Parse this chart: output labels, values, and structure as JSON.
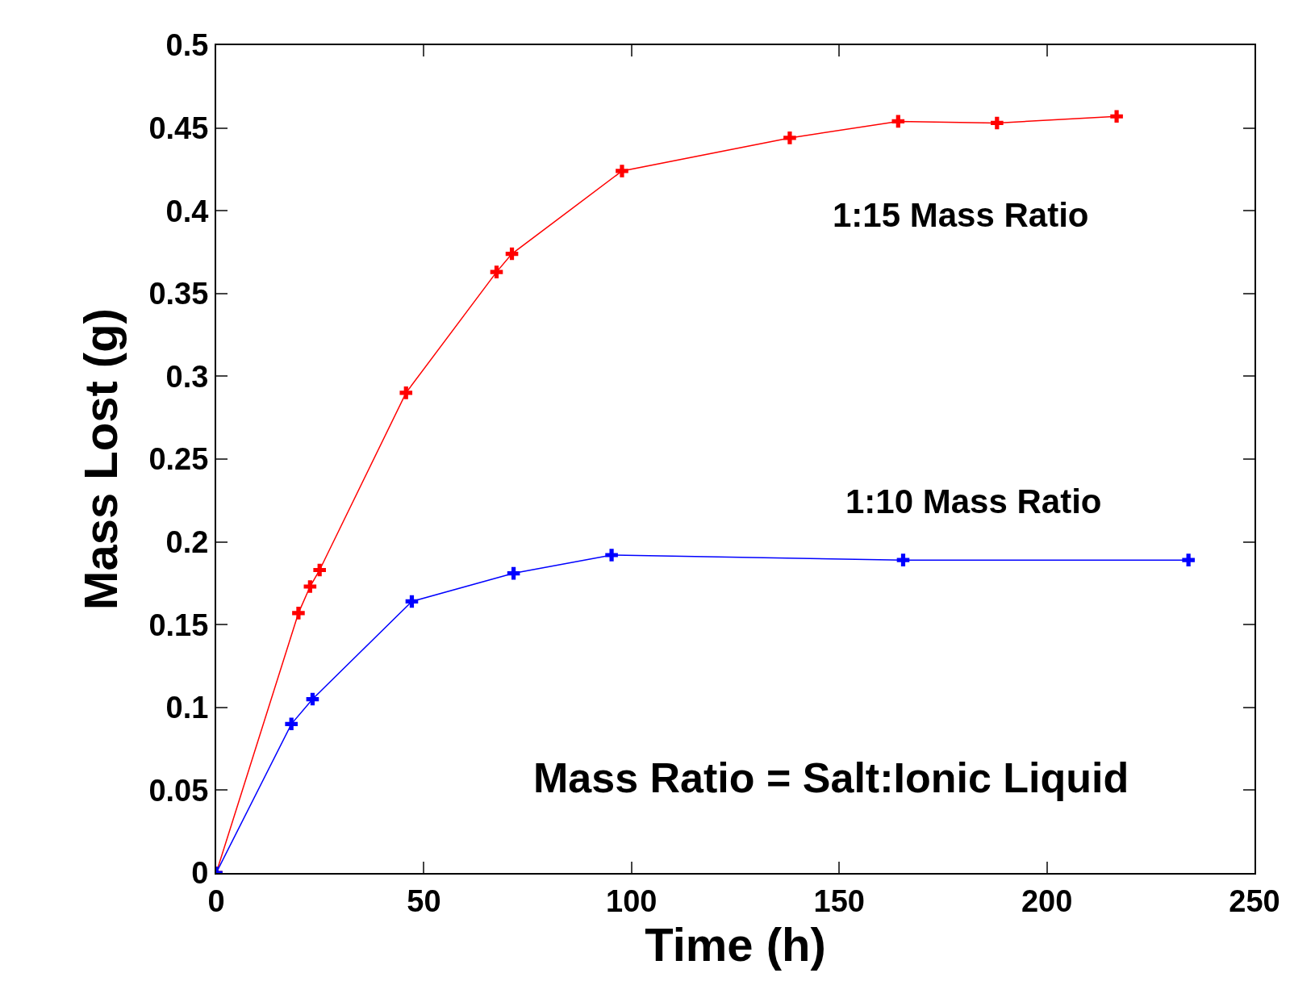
{
  "chart_data": {
    "type": "line",
    "xlabel": "Time (h)",
    "ylabel": "Mass Lost (g)",
    "xlim": [
      0,
      250
    ],
    "xticks": [
      0,
      50,
      100,
      150,
      200,
      250
    ],
    "ylim": [
      0,
      0.5
    ],
    "yticks": [
      0,
      0.05,
      0.1,
      0.15,
      0.2,
      0.25,
      0.3,
      0.35,
      0.4,
      0.45,
      0.5
    ],
    "series": [
      {
        "name": "1:15 Mass Ratio",
        "color": "#ff0000",
        "x": [
          0,
          19.8,
          22.6,
          24.9,
          45.7,
          67.5,
          71.2,
          97.7,
          138.1,
          164.2,
          188,
          216.8
        ],
        "values": [
          0,
          0.157,
          0.173,
          0.183,
          0.29,
          0.363,
          0.374,
          0.424,
          0.444,
          0.454,
          0.453,
          0.457
        ]
      },
      {
        "name": "1:10 Mass Ratio",
        "color": "#0000ff",
        "x": [
          0,
          18.1,
          23.2,
          47.1,
          71.6,
          95.2,
          165.4,
          234.1
        ],
        "values": [
          0,
          0.09,
          0.105,
          0.164,
          0.181,
          0.192,
          0.189,
          0.189
        ]
      }
    ],
    "annotations": [
      "Mass Ratio = Salt:Ionic Liquid"
    ],
    "marker": "cross",
    "line_style": "solid",
    "legend": false,
    "grid": false
  }
}
